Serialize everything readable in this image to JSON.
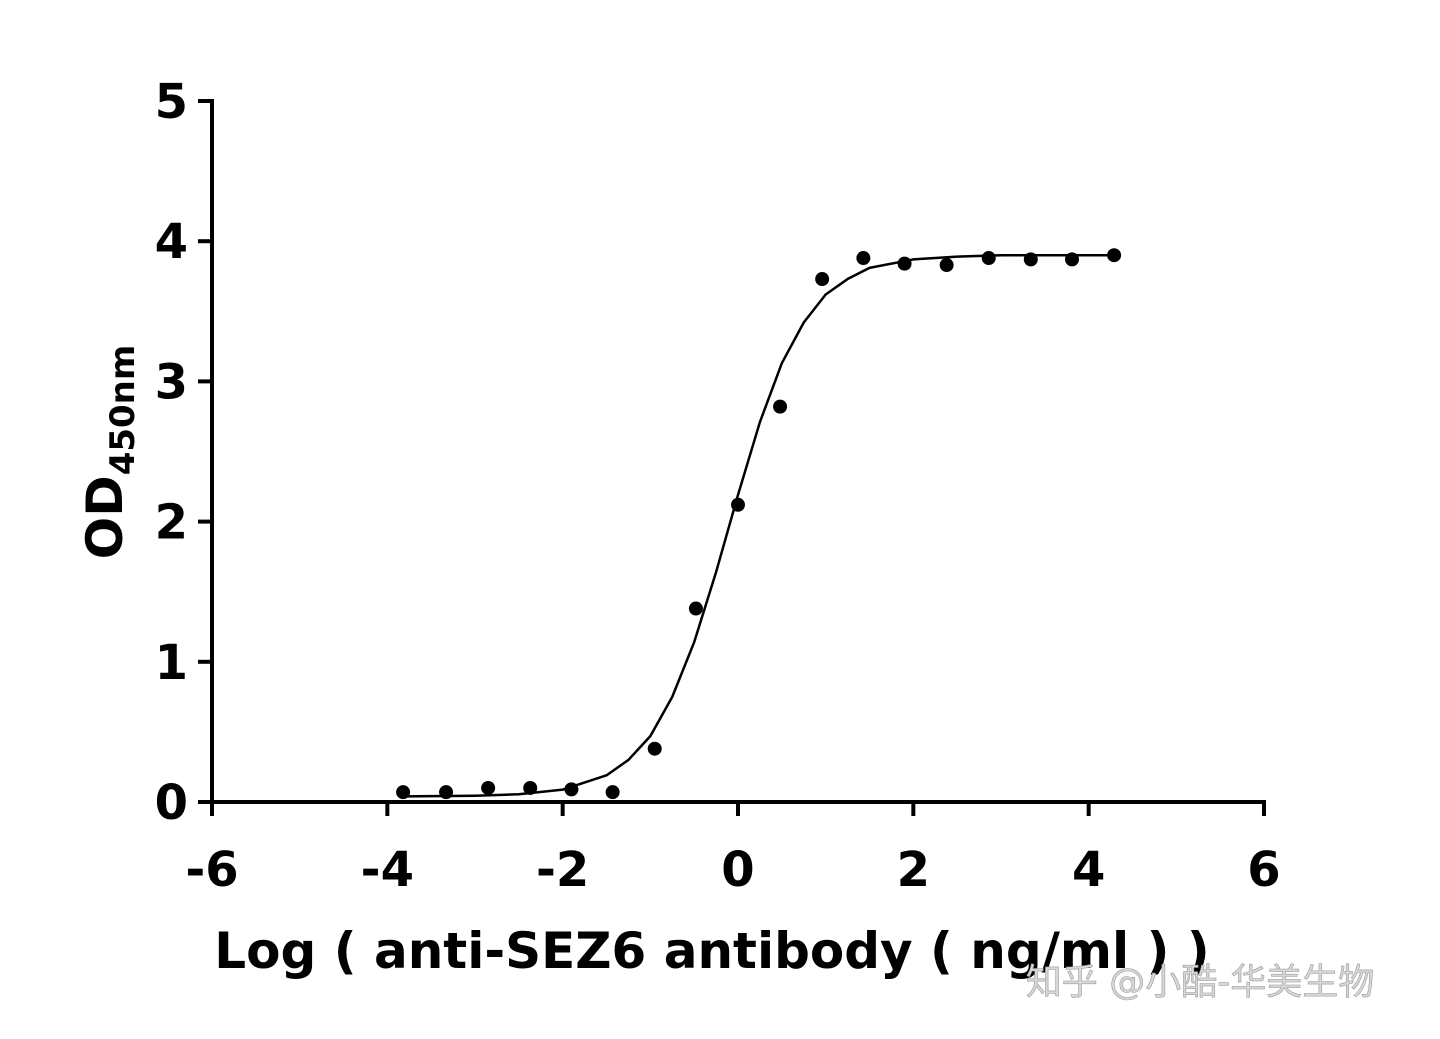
{
  "chart_data": {
    "type": "scatter",
    "x_label": "Log ( anti-SEZ6 antibody ( ng/ml )    )",
    "y_label": "OD",
    "y_label_sub": "450nm",
    "watermark": "知乎 @小酷-华美生物",
    "xlim": [
      -6,
      6
    ],
    "xticks": [
      -6,
      -4,
      -2,
      0,
      2,
      4,
      6
    ],
    "ylim": [
      0,
      5
    ],
    "yticks": [
      0,
      1,
      2,
      3,
      4,
      5
    ],
    "grid": false,
    "series": [
      {
        "type": "scatter",
        "color": "#000000",
        "x": [
          -3.82,
          -3.33,
          -2.85,
          -2.37,
          -1.9,
          -1.43,
          -0.95,
          -0.48,
          0.0,
          0.48,
          0.96,
          1.43,
          1.9,
          2.38,
          2.86,
          3.34,
          3.81,
          4.29
        ],
        "values": [
          0.07,
          0.07,
          0.1,
          0.1,
          0.09,
          0.07,
          0.38,
          1.38,
          2.12,
          2.82,
          3.73,
          3.88,
          3.84,
          3.83,
          3.88,
          3.87,
          3.87,
          3.9
        ]
      },
      {
        "type": "line",
        "color": "#000000",
        "x": [
          -3.8,
          -3,
          -2.5,
          -2,
          -1.5,
          -1.25,
          -1,
          -0.75,
          -0.5,
          -0.25,
          0,
          0.25,
          0.5,
          0.75,
          1,
          1.25,
          1.5,
          2,
          2.5,
          3,
          3.5,
          4.3
        ],
        "values": [
          0.04,
          0.045,
          0.055,
          0.088,
          0.19,
          0.3,
          0.47,
          0.75,
          1.14,
          1.64,
          2.19,
          2.71,
          3.13,
          3.42,
          3.62,
          3.73,
          3.81,
          3.87,
          3.89,
          3.9,
          3.9,
          3.9
        ]
      }
    ]
  }
}
